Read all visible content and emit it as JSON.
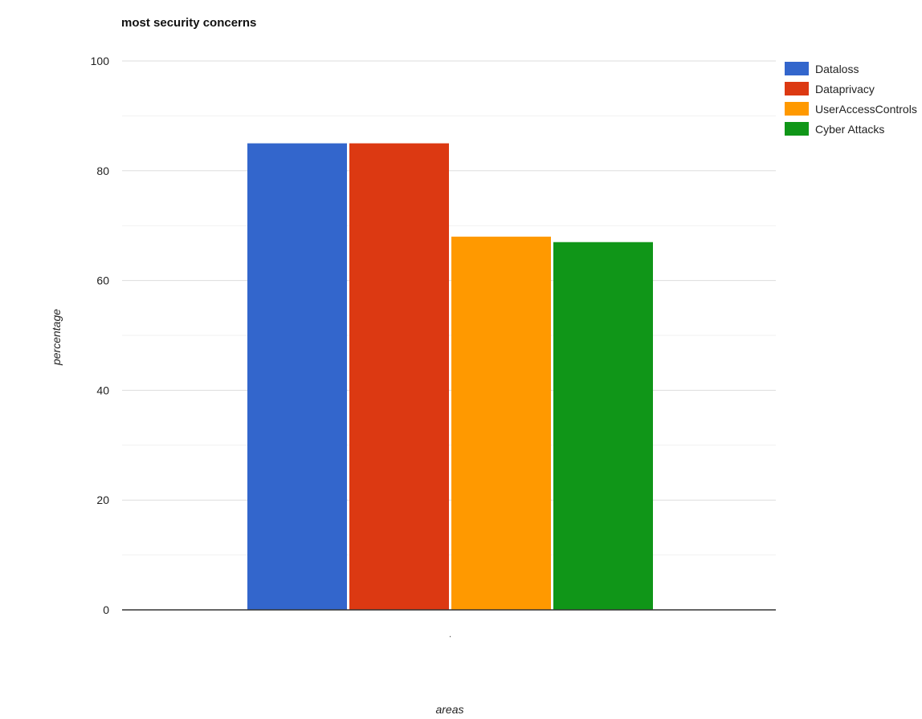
{
  "chart_data": {
    "type": "bar",
    "title": "most security concerns",
    "xlabel": "areas",
    "ylabel": "percentage",
    "categories": [
      ""
    ],
    "x_tick_label": ".",
    "ylim": [
      0,
      100
    ],
    "yticks": [
      0,
      20,
      40,
      60,
      80,
      100
    ],
    "grid": true,
    "legend_position": "right",
    "series": [
      {
        "name": "Dataloss",
        "color": "#3366cc",
        "values": [
          85
        ]
      },
      {
        "name": "Dataprivacy",
        "color": "#dc3912",
        "values": [
          85
        ]
      },
      {
        "name": "UserAccessControls",
        "color": "#ff9900",
        "values": [
          68
        ]
      },
      {
        "name": "Cyber Attacks",
        "color": "#109618",
        "values": [
          67
        ]
      }
    ]
  }
}
